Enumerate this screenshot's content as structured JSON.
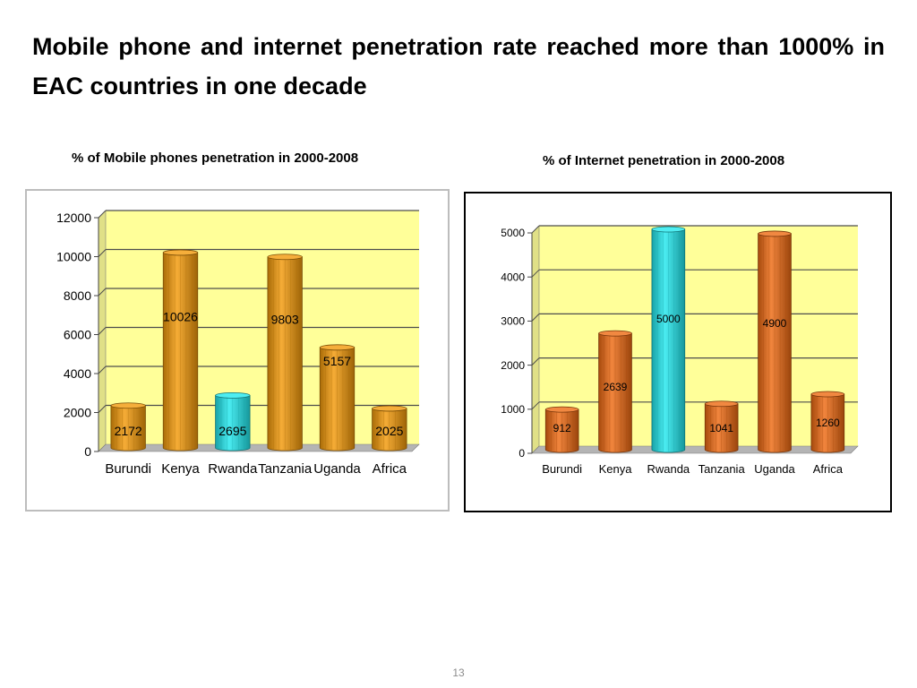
{
  "slide": {
    "title": "Mobile phone and internet penetration rate reached more than 1000% in EAC countries in one decade",
    "page_number": "13"
  },
  "colors": {
    "plot_bg": "#ffff99",
    "mobile_bar": "#f39a0a",
    "internet_bar": "#ee6a12",
    "highlight_bar": "#22e8ee",
    "gridline": "#4d4d4d"
  },
  "chart_data": [
    {
      "type": "bar",
      "caption": "% of Mobile phones penetration in 2000-2008",
      "categories": [
        "Burundi",
        "Kenya",
        "Rwanda",
        "Tanzania",
        "Uganda",
        "Africa"
      ],
      "values": [
        2172,
        10026,
        2695,
        9803,
        5157,
        2025
      ],
      "data_labels": [
        "2172",
        "10026",
        "2695",
        "9803",
        "5157",
        "2025"
      ],
      "highlight_index": 2,
      "ylim": [
        0,
        12000
      ],
      "yticks": [
        "0",
        "2000",
        "4000",
        "6000",
        "8000",
        "10000",
        "12000"
      ],
      "grid": true,
      "legend": "none"
    },
    {
      "type": "bar",
      "caption": "% of Internet penetration in 2000-2008",
      "categories": [
        "Burundi",
        "Kenya",
        "Rwanda",
        "Tanzania",
        "Uganda",
        "Africa"
      ],
      "values": [
        912,
        2639,
        5000,
        1041,
        4900,
        1260
      ],
      "data_labels": [
        "912",
        "2639",
        "5000",
        "1041",
        "4900",
        "1260"
      ],
      "highlight_index": 2,
      "ylim": [
        0,
        5000
      ],
      "yticks": [
        "0",
        "1000",
        "2000",
        "3000",
        "4000",
        "5000"
      ],
      "grid": true,
      "legend": "none"
    }
  ]
}
